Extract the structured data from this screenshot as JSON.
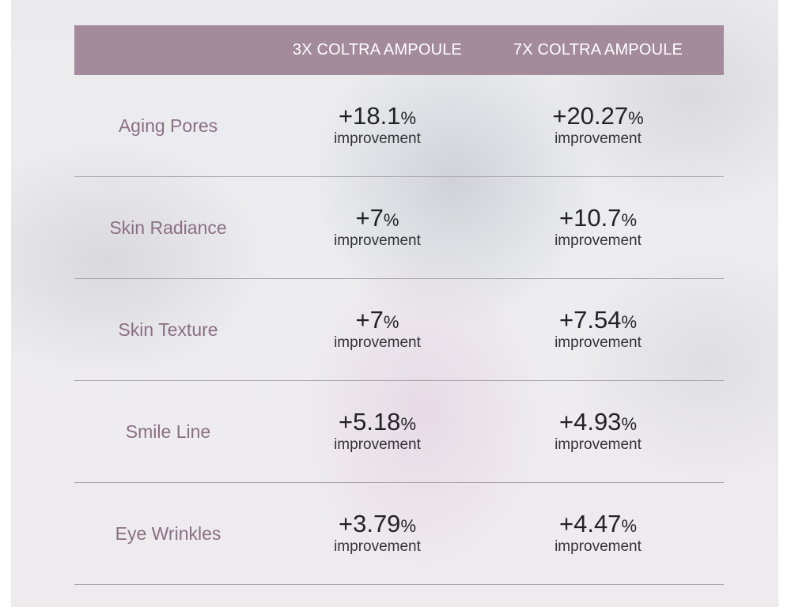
{
  "header": {
    "col1": "3X COLTRA AMPOULE",
    "col2": "7X COLTRA AMPOULE"
  },
  "colors": {
    "header_bg": "#a48b9c",
    "label_text": "#8a6f83",
    "value_text": "#222226"
  },
  "rows": [
    {
      "label": "Aging Pores",
      "v1": "+18.1",
      "v2": "+20.27",
      "unit": "%",
      "note": "improvement"
    },
    {
      "label": "Skin Radiance",
      "v1": "+7",
      "v2": "+10.7",
      "unit": "%",
      "note": "improvement"
    },
    {
      "label": "Skin Texture",
      "v1": "+7",
      "v2": "+7.54",
      "unit": "%",
      "note": "improvement"
    },
    {
      "label": "Smile Line",
      "v1": "+5.18",
      "v2": "+4.93",
      "unit": "%",
      "note": "improvement"
    },
    {
      "label": "Eye Wrinkles",
      "v1": "+3.79",
      "v2": "+4.47",
      "unit": "%",
      "note": "improvement"
    }
  ]
}
